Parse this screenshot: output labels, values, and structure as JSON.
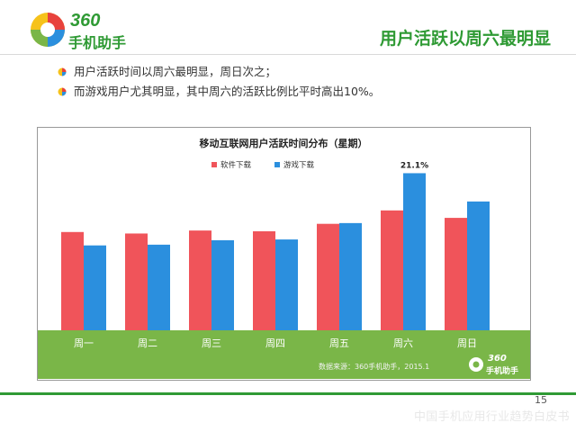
{
  "brand": {
    "number": "360",
    "name": "手机助手"
  },
  "slide": {
    "title": "用户活跃以周六最明显",
    "page_number": "15"
  },
  "bullets": [
    "用户活跃时间以周六最明显，周日次之；",
    "而游戏用户尤其明显，其中周六的活跃比例比平时高出10%。"
  ],
  "source_note": "数据来源：360手机助手，2015.1",
  "watermark": "中国手机应用行业趋势白皮书",
  "colors": {
    "software": "#f0545a",
    "games": "#2b8fde",
    "accent": "#2f9a34",
    "ground": "#7ab648"
  },
  "chart_data": {
    "type": "bar",
    "title": "移动互联网用户活跃时间分布（星期）",
    "categories": [
      "周一",
      "周二",
      "周三",
      "周四",
      "周五",
      "周六",
      "周日"
    ],
    "series": [
      {
        "name": "软件下载",
        "values": [
          13.2,
          13.0,
          13.4,
          13.3,
          14.3,
          16.1,
          15.1
        ]
      },
      {
        "name": "游戏下载",
        "values": [
          11.4,
          11.5,
          12.1,
          12.2,
          14.4,
          21.1,
          17.3
        ]
      }
    ],
    "ylim": [
      0,
      22
    ],
    "annotations": [
      {
        "category": "周六",
        "series": "游戏下载",
        "label": "21.1%"
      }
    ],
    "legend": "top-center",
    "grid": false
  }
}
